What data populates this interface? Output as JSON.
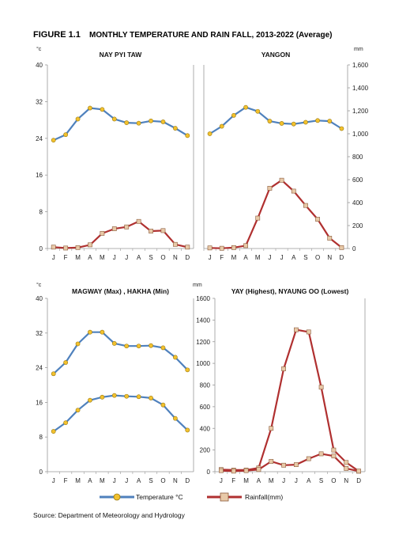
{
  "figure": {
    "label": "FIGURE 1.1",
    "title": "MONTHLY TEMPERATURE AND RAIN FALL, 2013-2022 (Average)",
    "source": "Source: Department  of Meteorology and Hydrology"
  },
  "legend": {
    "temperature": "Temperature  °C",
    "rainfall": "Rainfall(mm)"
  },
  "colors": {
    "temperature_line": "#4f81bd",
    "temperature_marker": "#f2c12e",
    "rainfall_line": "#b03030",
    "rainfall_marker": "#e8c9a8",
    "axis": "#999999"
  },
  "chart_data": [
    {
      "type": "line",
      "title": "NAY PYI TAW",
      "y_unit": "°c",
      "categories": [
        "J",
        "F",
        "M",
        "A",
        "M",
        "J",
        "J",
        "A",
        "S",
        "O",
        "N",
        "D"
      ],
      "y_ticks": [
        "40",
        "32",
        "24",
        "16",
        "8",
        "0"
      ],
      "ylim": [
        0,
        40
      ],
      "series": [
        {
          "kind": "temperature",
          "values": [
            23.6,
            24.8,
            28.2,
            30.6,
            30.3,
            28.2,
            27.4,
            27.3,
            27.8,
            27.6,
            26.2,
            24.6
          ]
        },
        {
          "kind": "rainfall",
          "values": [
            0.3,
            0.1,
            0.2,
            0.8,
            3.3,
            4.3,
            4.7,
            5.9,
            3.8,
            3.9,
            0.9,
            0.3
          ]
        }
      ]
    },
    {
      "type": "line",
      "title": "YANGON",
      "y_unit": "mm",
      "categories": [
        "J",
        "F",
        "M",
        "A",
        "M",
        "J",
        "J",
        "A",
        "S",
        "O",
        "N",
        "D"
      ],
      "y_ticks": [
        "1,600",
        "1,400",
        "1,200",
        "1,000",
        "800",
        "600",
        "400",
        "200",
        "0"
      ],
      "ylim": [
        0,
        1600
      ],
      "series": [
        {
          "kind": "temperature",
          "values": [
            1000,
            1065,
            1160,
            1230,
            1195,
            1110,
            1090,
            1085,
            1100,
            1115,
            1110,
            1045
          ]
        },
        {
          "kind": "rainfall",
          "values": [
            5,
            2,
            8,
            25,
            265,
            525,
            595,
            500,
            375,
            255,
            90,
            8
          ]
        }
      ]
    },
    {
      "type": "line",
      "title": "MAGWAY (Max) , HAKHA (Min)",
      "y_unit": "°c",
      "categories": [
        "J",
        "F",
        "M",
        "A",
        "M",
        "J",
        "J",
        "A",
        "S",
        "O",
        "N",
        "D"
      ],
      "y_ticks": [
        "40",
        "32",
        "24",
        "16",
        "8",
        "0"
      ],
      "ylim": [
        0,
        40
      ],
      "series": [
        {
          "kind": "temperature",
          "values": [
            22.6,
            25.2,
            29.5,
            32.2,
            32.2,
            29.6,
            29.0,
            29.0,
            29.1,
            28.6,
            26.4,
            23.5
          ]
        },
        {
          "kind": "temperature",
          "values": [
            9.3,
            11.3,
            14.2,
            16.5,
            17.2,
            17.6,
            17.4,
            17.3,
            17.0,
            15.4,
            12.3,
            9.6
          ]
        }
      ]
    },
    {
      "type": "line",
      "title": "YAY (Highest), NYAUNG OO (Lowest)",
      "y_unit": "mm",
      "categories": [
        "J",
        "F",
        "M",
        "A",
        "M",
        "J",
        "J",
        "A",
        "S",
        "O",
        "N",
        "D"
      ],
      "y_ticks": [
        "1600",
        "1400",
        "1200",
        "1000",
        "800",
        "600",
        "400",
        "200",
        "0"
      ],
      "ylim": [
        0,
        1600
      ],
      "series": [
        {
          "kind": "rainfall",
          "values": [
            20,
            15,
            15,
            35,
            400,
            950,
            1310,
            1290,
            780,
            200,
            85,
            5
          ]
        },
        {
          "kind": "rainfall",
          "values": [
            10,
            5,
            10,
            20,
            95,
            60,
            65,
            120,
            165,
            145,
            30,
            5
          ]
        }
      ]
    }
  ]
}
